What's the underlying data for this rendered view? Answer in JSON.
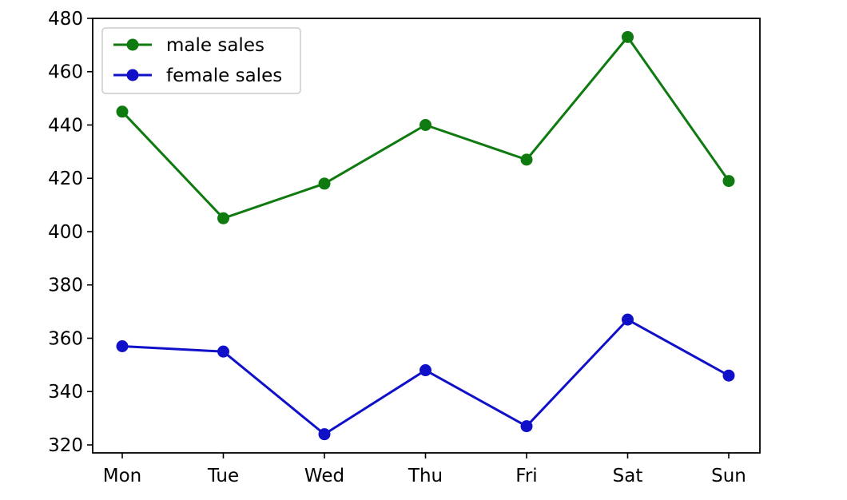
{
  "chart_data": {
    "type": "line",
    "title": "",
    "xlabel": "",
    "ylabel": "",
    "categories": [
      "Mon",
      "Tue",
      "Wed",
      "Thu",
      "Fri",
      "Sat",
      "Sun"
    ],
    "ylim": [
      317,
      480
    ],
    "yticks": [
      320,
      340,
      360,
      380,
      400,
      420,
      440,
      460,
      480
    ],
    "series": [
      {
        "name": "male sales",
        "color": "#0f7a0f",
        "marker": "circle",
        "values": [
          445,
          405,
          418,
          440,
          427,
          473,
          419
        ]
      },
      {
        "name": "female sales",
        "color": "#1010c8",
        "marker": "circle",
        "values": [
          357,
          355,
          324,
          348,
          327,
          367,
          346
        ]
      }
    ],
    "legend": {
      "position": "top-left"
    },
    "grid": false
  }
}
